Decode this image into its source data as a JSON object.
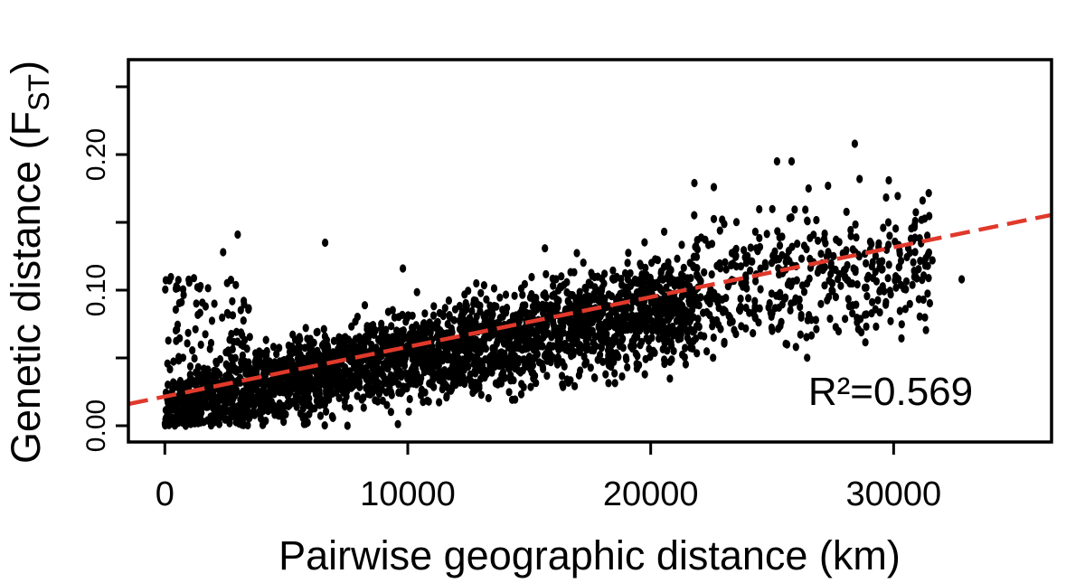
{
  "chart_data": {
    "type": "scatter",
    "title": "",
    "xlabel": "Pairwise geographic distance (km)",
    "ylabel": {
      "prefix": "Genetic distance (F",
      "subscript": "ST",
      "suffix": ")"
    },
    "xlim": [
      -1500,
      36500
    ],
    "ylim": [
      -0.012,
      0.27
    ],
    "xticks": [
      0,
      10000,
      20000,
      30000
    ],
    "xtick_labels": [
      "0",
      "10000",
      "20000",
      "30000"
    ],
    "yticks": [
      0.0,
      0.05,
      0.1,
      0.15,
      0.2,
      0.25
    ],
    "ytick_labels": [
      "0.00",
      "",
      "0.10",
      "",
      "0.20",
      ""
    ],
    "grid": false,
    "legend": "none",
    "points": {
      "n": 3200,
      "color": "#000000",
      "sample_outliers": [
        [
          2400,
          0.128
        ],
        [
          3000,
          0.141
        ],
        [
          6600,
          0.135
        ],
        [
          9800,
          0.116
        ],
        [
          21800,
          0.179
        ],
        [
          22600,
          0.176
        ],
        [
          25200,
          0.195
        ],
        [
          25800,
          0.195
        ],
        [
          26500,
          0.175
        ],
        [
          27300,
          0.177
        ],
        [
          28400,
          0.208
        ],
        [
          28600,
          0.182
        ],
        [
          29800,
          0.181
        ],
        [
          31600,
          0.122
        ],
        [
          32800,
          0.108
        ],
        [
          25000,
          0.07
        ],
        [
          26800,
          0.078
        ],
        [
          1200,
          0.005
        ],
        [
          500,
          0.01
        ]
      ]
    },
    "regression": {
      "intercept": 0.0215,
      "slope_per_km": 3.67e-06,
      "color": "#e0392b",
      "style": "dashed"
    },
    "annotation": {
      "text": "R²=0.569",
      "color": "#e0392b"
    }
  }
}
